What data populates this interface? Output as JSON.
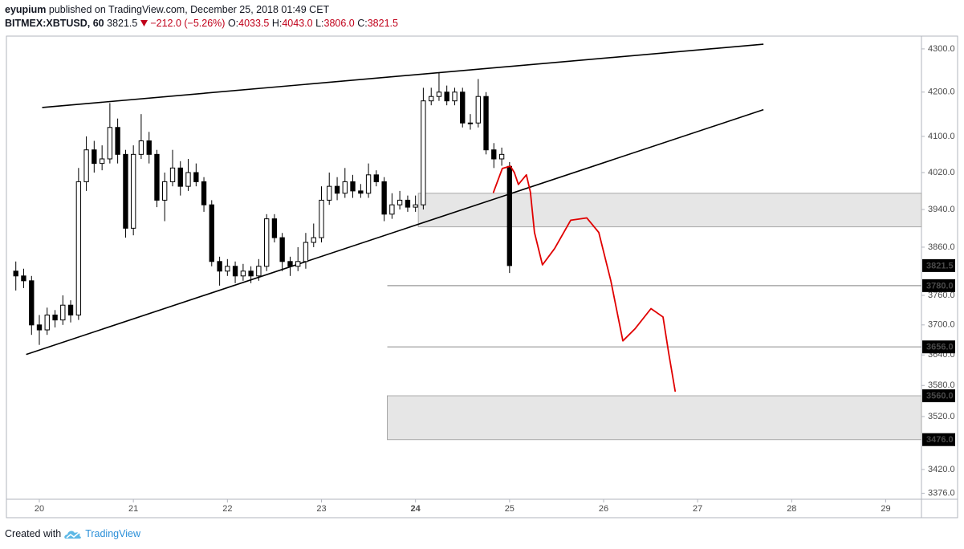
{
  "header": {
    "author": "eyupium",
    "published": "published on TradingView.com, December 25, 2018 01:49 CET",
    "symbol": "BITMEX:XBTUSD, 60",
    "last": "3821.5",
    "change": "−212.0 (−5.26%)",
    "o_label": "O:",
    "open": "4033.5",
    "h_label": "H:",
    "high": "4043.0",
    "l_label": "L:",
    "low": "3806.0",
    "c_label": "C:",
    "close": "3821.5"
  },
  "chart_data": {
    "type": "candlestick",
    "x": [
      19.75,
      19.833,
      19.917,
      20,
      20.083,
      20.167,
      20.25,
      20.333,
      20.417,
      20.5,
      20.583,
      20.667,
      20.75,
      20.833,
      20.917,
      21,
      21.083,
      21.167,
      21.25,
      21.333,
      21.417,
      21.5,
      21.583,
      21.667,
      21.75,
      21.833,
      21.917,
      22,
      22.083,
      22.167,
      22.25,
      22.333,
      22.417,
      22.5,
      22.583,
      22.667,
      22.75,
      22.833,
      22.917,
      23,
      23.083,
      23.167,
      23.25,
      23.333,
      23.417,
      23.5,
      23.583,
      23.667,
      23.75,
      23.833,
      23.917,
      24,
      24.083,
      24.167,
      24.25,
      24.333,
      24.417,
      24.5,
      24.583,
      24.667,
      24.75,
      24.833,
      24.917,
      25
    ],
    "open": [
      3810,
      3800,
      3790,
      3700,
      3690,
      3720,
      3710,
      3740,
      3720,
      4000,
      4070,
      4040,
      4050,
      4120,
      4060,
      3900,
      4060,
      4090,
      4060,
      3960,
      4000,
      4030,
      3990,
      4020,
      4000,
      3950,
      3830,
      3810,
      3820,
      3800,
      3810,
      3800,
      3820,
      3920,
      3880,
      3830,
      3820,
      3830,
      3870,
      3880,
      3960,
      3990,
      3975,
      4000,
      3980,
      3975,
      4015,
      4000,
      3930,
      3950,
      3960,
      3945,
      3950,
      4180,
      4190,
      4200,
      4180,
      4200,
      4130,
      4130,
      4190,
      4070,
      4050,
      4033.5
    ],
    "high": [
      3830,
      3815,
      3800,
      3720,
      3735,
      3730,
      3760,
      3750,
      4030,
      4100,
      4090,
      4080,
      4175,
      4140,
      4070,
      4080,
      4150,
      4110,
      4070,
      4020,
      4070,
      4045,
      4050,
      4040,
      4010,
      3960,
      3840,
      3835,
      3830,
      3825,
      3820,
      3835,
      3930,
      3930,
      3890,
      3840,
      3860,
      3890,
      3910,
      3990,
      4020,
      4010,
      4030,
      4015,
      3995,
      4040,
      4025,
      4010,
      3975,
      3980,
      3970,
      3970,
      4210,
      4210,
      4245,
      4215,
      4210,
      4210,
      4150,
      4230,
      4200,
      4085,
      4075,
      4043
    ],
    "low": [
      3770,
      3775,
      3680,
      3660,
      3680,
      3695,
      3700,
      3705,
      3710,
      3980,
      4020,
      4025,
      4040,
      4040,
      3880,
      3885,
      4050,
      4040,
      3945,
      3915,
      3990,
      3970,
      3980,
      3990,
      3935,
      3820,
      3780,
      3800,
      3785,
      3790,
      3785,
      3790,
      3810,
      3870,
      3810,
      3800,
      3810,
      3815,
      3860,
      3870,
      3950,
      3960,
      3965,
      3965,
      3965,
      3965,
      3990,
      3915,
      3920,
      3940,
      3935,
      3935,
      3940,
      4170,
      4180,
      4170,
      4170,
      4120,
      4115,
      4120,
      4060,
      4030,
      4035,
      3806
    ],
    "close": [
      3800,
      3790,
      3700,
      3690,
      3720,
      3710,
      3740,
      3720,
      4000,
      4070,
      4040,
      4050,
      4120,
      4060,
      3900,
      4060,
      4090,
      4060,
      3960,
      4000,
      4030,
      3990,
      4020,
      4000,
      3950,
      3830,
      3810,
      3820,
      3800,
      3810,
      3800,
      3820,
      3920,
      3880,
      3830,
      3820,
      3830,
      3870,
      3880,
      3960,
      3990,
      3975,
      4000,
      3980,
      3975,
      4015,
      4000,
      3930,
      3950,
      3960,
      3945,
      3950,
      4180,
      4190,
      4200,
      4180,
      4200,
      4130,
      4130,
      4190,
      4070,
      4050,
      4060,
      3821.5
    ],
    "up_color": "#ffffff",
    "down_color": "#000000",
    "wick_color": "#000000",
    "xlim": [
      19.65,
      29.38
    ],
    "xticks": [
      20,
      21,
      22,
      23,
      24,
      25,
      26,
      27,
      28,
      29
    ],
    "xtick_bold": 24,
    "ylim": [
      3365,
      4330
    ],
    "log_scale": true,
    "grid": false,
    "yticks": [
      {
        "value": 4300,
        "label": "4300.0"
      },
      {
        "value": 4200,
        "label": "4200.0"
      },
      {
        "value": 4100,
        "label": "4100.0"
      },
      {
        "value": 4020,
        "label": "4020.0"
      },
      {
        "value": 3940,
        "label": "3940.0"
      },
      {
        "value": 3860,
        "label": "3860.0"
      },
      {
        "value": 3760,
        "label": "3760.0"
      },
      {
        "value": 3700,
        "label": "3700.0"
      },
      {
        "value": 3640,
        "label": "3640.0"
      },
      {
        "value": 3580,
        "label": "3580.0"
      },
      {
        "value": 3520,
        "label": "3520.0"
      },
      {
        "value": 3420,
        "label": "3420.0"
      },
      {
        "value": 3376,
        "label": "3376.0"
      }
    ],
    "price_label": {
      "value": 3821.5,
      "label": "3821.5"
    },
    "levels": [
      {
        "value": 3780,
        "label": "3780.0",
        "start": 23.7
      },
      {
        "value": 3656,
        "label": "3656.0",
        "start": 23.7
      }
    ],
    "zones": [
      {
        "top": 3975,
        "bottom": 3903,
        "start": 24.03
      },
      {
        "top": 3560,
        "bottom": 3476,
        "start": 23.7,
        "top_label": "3560.0",
        "bottom_label": "3476.0"
      }
    ],
    "trend_lines": [
      {
        "x": [
          20.03,
          27.7
        ],
        "values": [
          4165,
          4311
        ]
      },
      {
        "x": [
          19.86,
          27.7
        ],
        "values": [
          3641,
          4160
        ]
      }
    ],
    "forecast": {
      "color": "#e00000",
      "x": [
        24.829,
        24.923,
        25.009,
        25.051,
        25.094,
        25.179,
        25.222,
        25.265,
        25.35,
        25.479,
        25.65,
        25.821,
        25.949,
        26.077,
        26.205,
        26.333,
        26.504,
        26.632,
        26.692,
        26.761
      ],
      "values": [
        3977,
        4029,
        4034,
        4020,
        3994,
        4015,
        3977,
        3891,
        3823,
        3857,
        3917,
        3922,
        3891,
        3790,
        3668,
        3692,
        3733,
        3716,
        3644,
        3569
      ]
    }
  },
  "footer": {
    "text": "Created with",
    "brand": "TradingView"
  }
}
